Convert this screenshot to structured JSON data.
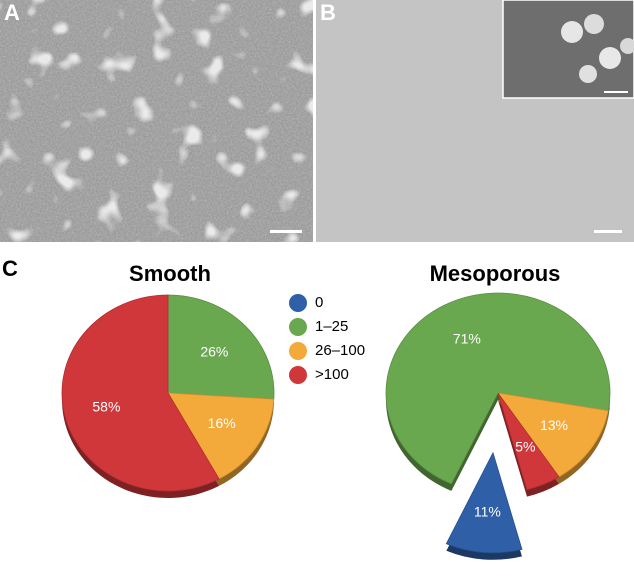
{
  "panels": [
    "A",
    "B",
    "C"
  ],
  "chart_data": [
    {
      "type": "pie",
      "title": "Smooth",
      "categories": [
        "0",
        "1–25",
        "26–100",
        ">100"
      ],
      "colors": [
        "#2f5fa7",
        "#6aa84f",
        "#f4a93b",
        "#d0373b"
      ],
      "values": [
        0,
        26,
        16,
        58
      ],
      "value_labels": [
        null,
        "26%",
        "16%",
        "58%"
      ]
    },
    {
      "type": "pie",
      "title": "Mesoporous",
      "categories": [
        "0",
        "1–25",
        "26–100",
        ">100"
      ],
      "colors": [
        "#2f5fa7",
        "#6aa84f",
        "#f4a93b",
        "#d0373b"
      ],
      "values": [
        11,
        71,
        13,
        5
      ],
      "value_labels": [
        "11%",
        "71%",
        "13%",
        "5%"
      ]
    }
  ]
}
